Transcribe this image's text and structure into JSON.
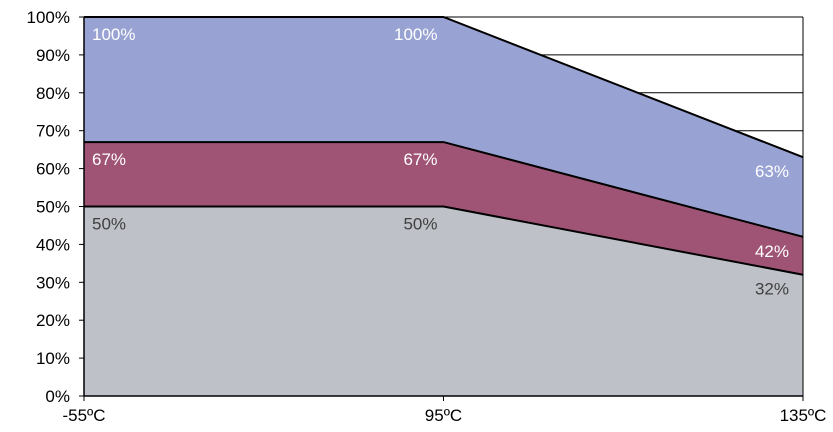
{
  "chart_data": {
    "type": "area",
    "categories": [
      "-55ºC",
      "95ºC",
      "135ºC"
    ],
    "y_ticks": [
      "0%",
      "10%",
      "20%",
      "30%",
      "40%",
      "50%",
      "60%",
      "70%",
      "80%",
      "90%",
      "100%"
    ],
    "ylim": [
      0,
      100
    ],
    "grid": "horizontal lines above top area",
    "series": [
      {
        "values": [
          50,
          50,
          32
        ],
        "color": "#bfc1c8",
        "labels": [
          "50%",
          "50%",
          "32%"
        ],
        "label_color": "#404040"
      },
      {
        "values": [
          67,
          67,
          42
        ],
        "color": "#a05475",
        "labels": [
          "67%",
          "67%",
          "42%"
        ],
        "label_color": "#ffffff"
      },
      {
        "values": [
          100,
          100,
          63
        ],
        "color": "#98a2d3",
        "labels": [
          "100%",
          "100%",
          "63%"
        ],
        "label_color": "#ffffff"
      }
    ]
  }
}
